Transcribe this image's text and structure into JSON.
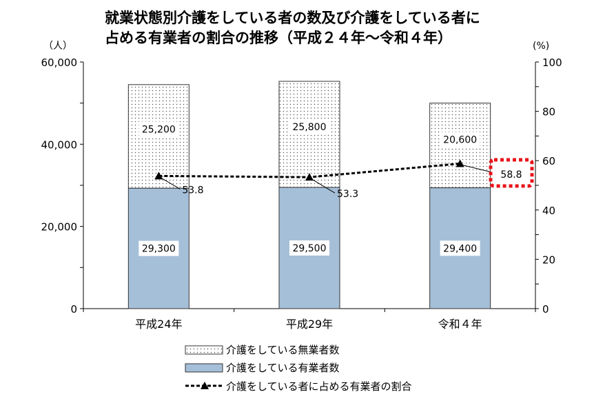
{
  "chart_data": {
    "type": "bar",
    "title_lines": [
      "就業状態別介護をしている者の数及び介護をしている者に",
      "占める有業者の割合の推移（平成２４年～令和４年）"
    ],
    "left_unit": "（人）",
    "right_unit": "(%)",
    "categories": [
      "平成24年",
      "平成29年",
      "令和４年"
    ],
    "ylim_left": [
      0,
      60000
    ],
    "yticks_left": [
      "0",
      "20,000",
      "40,000",
      "60,000"
    ],
    "ylim_right": [
      0,
      100
    ],
    "yticks_right": [
      "0",
      "20",
      "40",
      "60",
      "80",
      "100"
    ],
    "series": [
      {
        "name": "介護をしている有業者数",
        "kind": "bar",
        "stack": "bottom",
        "color": "#a6bfd8",
        "values": [
          29300,
          29500,
          29400
        ],
        "labels": [
          "29,300",
          "29,500",
          "29,400"
        ]
      },
      {
        "name": "介護をしている無業者数",
        "kind": "bar",
        "stack": "top",
        "pattern": "dots",
        "values": [
          25200,
          25800,
          20600
        ],
        "labels": [
          "25,200",
          "25,800",
          "20,600"
        ]
      },
      {
        "name": "介護をしている者に占める有業者の割合",
        "kind": "line",
        "axis": "right",
        "values": [
          53.8,
          53.3,
          58.8
        ],
        "labels": [
          "53.8",
          "53.3",
          "58.8"
        ]
      }
    ],
    "highlight_color": "#e8141a",
    "grid": false,
    "legend_position": "bottom"
  }
}
